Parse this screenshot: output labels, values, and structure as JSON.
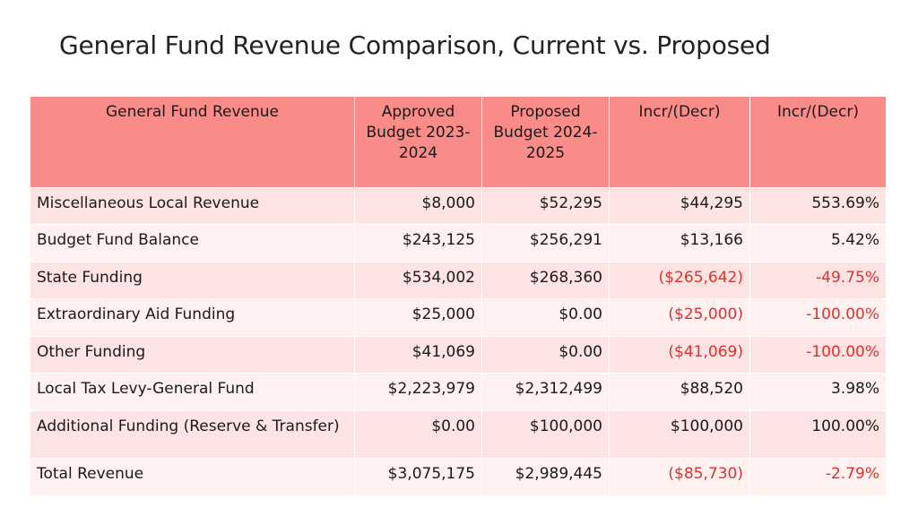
{
  "title": "General Fund Revenue Comparison, Current vs. Proposed",
  "table": {
    "headers": [
      "General Fund Revenue",
      "Approved Budget 2023-2024",
      "Proposed Budget 2024-2025",
      "Incr/(Decr)",
      "Incr/(Decr)"
    ],
    "rows": [
      [
        "Miscellaneous Local Revenue",
        "$8,000",
        "$52,295",
        "$44,295",
        "553.69%"
      ],
      [
        "Budget Fund Balance",
        "$243,125",
        "$256,291",
        "$13,166",
        "5.42%"
      ],
      [
        "State Funding",
        "$534,002",
        "$268,360",
        "($265,642)",
        "-49.75%"
      ],
      [
        "Extraordinary Aid Funding",
        "$25,000",
        "$0.00",
        "($25,000)",
        "-100.00%"
      ],
      [
        "Other Funding",
        "$41,069",
        "$0.00",
        "($41,069)",
        "-100.00%"
      ],
      [
        "Local Tax Levy-General Fund",
        "$2,223,979",
        "$2,312,499",
        "$88,520",
        "3.98%"
      ],
      [
        "Additional Funding (Reserve & Transfer)",
        "$0.00",
        "$100,000",
        "$100,000",
        "100.00%"
      ],
      [
        "Total Revenue",
        "$3,075,175",
        "$2,989,445",
        "($85,730)",
        "-2.79%"
      ]
    ]
  },
  "colors": {
    "header": "#f98b89",
    "row_odd": "#fde3e2",
    "row_even": "#fef1f0",
    "negative": "#e03030"
  }
}
